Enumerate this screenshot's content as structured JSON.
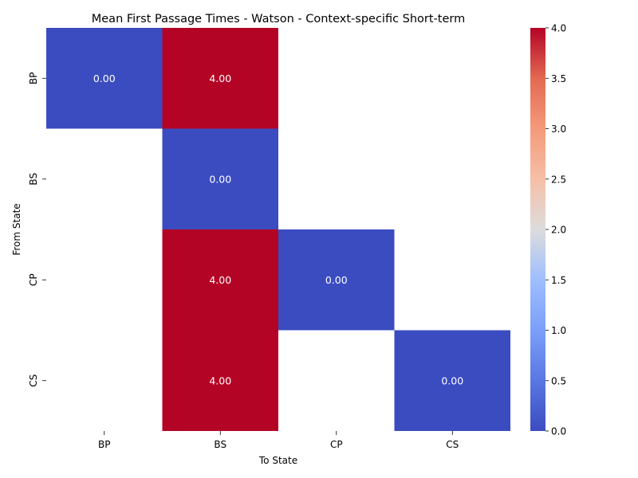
{
  "chart_data": {
    "type": "heatmap",
    "title": "Mean First Passage Times - Watson - Context-specific Short-term",
    "xlabel": "To State",
    "ylabel": "From State",
    "x_categories": [
      "BP",
      "BS",
      "CP",
      "CS"
    ],
    "y_categories": [
      "BP",
      "BS",
      "CP",
      "CS"
    ],
    "values": [
      [
        0.0,
        4.0,
        null,
        null
      ],
      [
        null,
        0.0,
        null,
        null
      ],
      [
        null,
        4.0,
        0.0,
        null
      ],
      [
        null,
        4.0,
        null,
        0.0
      ]
    ],
    "cell_labels": [
      [
        "0.00",
        "4.00",
        "",
        ""
      ],
      [
        "",
        "0.00",
        "",
        ""
      ],
      [
        "",
        "4.00",
        "0.00",
        ""
      ],
      [
        "",
        "4.00",
        "",
        "0.00"
      ]
    ],
    "colormap": "coolwarm",
    "colormap_min_color": "#3b4cc0",
    "colormap_max_color": "#b40426",
    "colorbar": {
      "range": [
        0.0,
        4.0
      ],
      "ticks": [
        0.0,
        0.5,
        1.0,
        1.5,
        2.0,
        2.5,
        3.0,
        3.5,
        4.0
      ],
      "tick_labels": [
        "0.0",
        "0.5",
        "1.0",
        "1.5",
        "2.0",
        "2.5",
        "3.0",
        "3.5",
        "4.0"
      ]
    },
    "grid": false
  }
}
